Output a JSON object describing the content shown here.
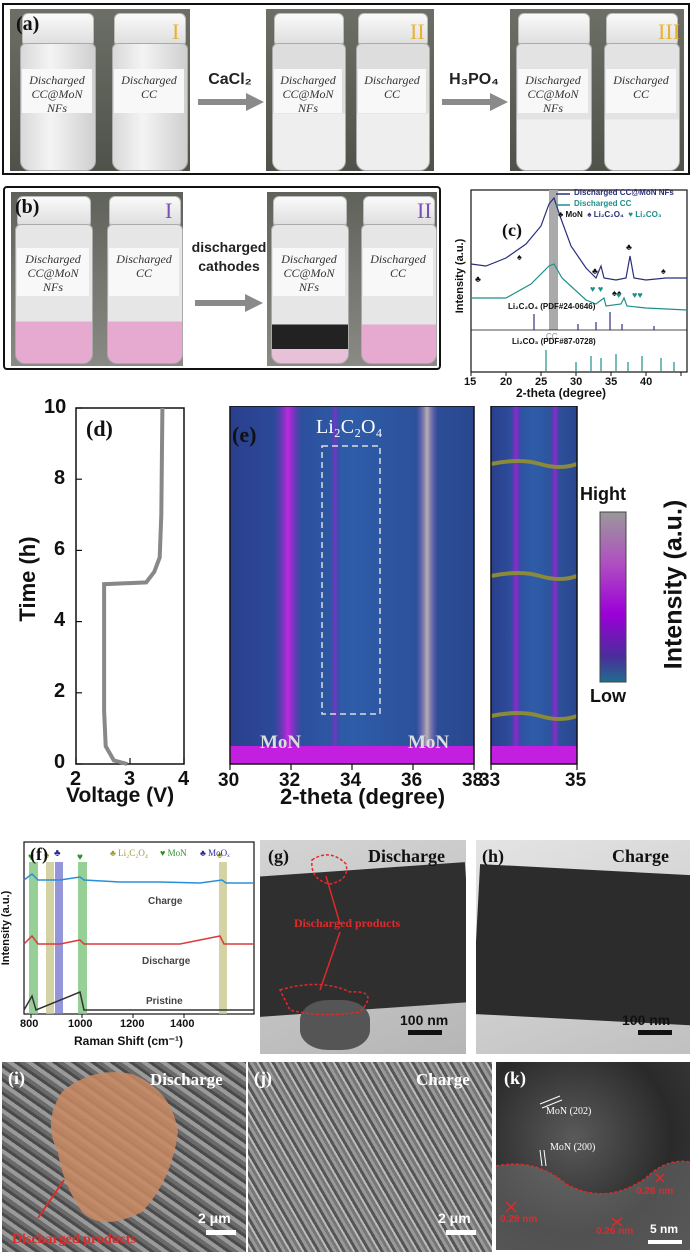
{
  "panel_a": {
    "label": "(a)",
    "vial_text_1": "Discharged CC@MoN NFs",
    "vial_text_2": "Discharged CC",
    "step1": "CaCl₂",
    "step2": "H₃PO₄",
    "roman": [
      "I",
      "II",
      "III"
    ]
  },
  "panel_b": {
    "label": "(b)",
    "step": "discharged cathodes",
    "roman": [
      "I",
      "II"
    ]
  },
  "panel_c": {
    "label": "(c)",
    "legend": [
      "Discharged CC@MoN NFs",
      "Discharged CC"
    ],
    "markers": [
      "♣ MoN",
      "♠ Li₂C₂O₄",
      "♥ Li₂CO₃"
    ],
    "cc_label": "CC",
    "ref1": "Li₂C₂O₄ (PDF#24-0646)",
    "ref2": "Li₂CO₃ (PDF#87-0728)",
    "ylabel": "Intensity (a.u.)",
    "xlabel": "2-theta (degree)",
    "xticks": [
      "15",
      "20",
      "25",
      "30",
      "35",
      "40"
    ]
  },
  "panel_d": {
    "label": "(d)",
    "ylabel": "Time (h)",
    "xlabel": "Voltage (V)",
    "yticks": [
      "0",
      "2",
      "4",
      "6",
      "8",
      "10"
    ],
    "xticks": [
      "2",
      "3",
      "4"
    ]
  },
  "panel_e": {
    "label": "(e)",
    "box_label": "Li₂C₂O₄",
    "mon1": "MoN",
    "mon2": "MoN",
    "xlabel": "2-theta (degree)",
    "xticks_main": [
      "30",
      "32",
      "34",
      "36",
      "38"
    ],
    "xticks_zoom": [
      "33",
      "35"
    ],
    "colorbar_high": "Hight",
    "colorbar_low": "Low",
    "colorbar_title": "Intensity (a.u.)"
  },
  "panel_f": {
    "label": "(f)",
    "legend": [
      "♣ Li₂C₂O₄",
      "♥ MoN",
      "♣ MoOₓ"
    ],
    "traces": [
      "Charge",
      "Discharge",
      "Pristine"
    ],
    "ylabel": "Intensity (a.u.)",
    "xlabel": "Raman Shift (cm⁻¹)",
    "xticks": [
      "800",
      "1000",
      "1200",
      "1400"
    ]
  },
  "panel_g": {
    "label": "(g)",
    "title": "Discharge",
    "annotation": "Discharged products",
    "scale": "100 nm"
  },
  "panel_h": {
    "label": "(h)",
    "title": "Charge",
    "scale": "100 nm"
  },
  "panel_i": {
    "label": "(i)",
    "title": "Discharge",
    "annotation": "Discharged products",
    "scale": "2 μm"
  },
  "panel_j": {
    "label": "(j)",
    "title": "Charge",
    "scale": "2 μm"
  },
  "panel_k": {
    "label": "(k)",
    "mon202": "MoN (202)",
    "mon200": "MoN (200)",
    "d1": "0.28 nm",
    "d2": "0.28 nm",
    "d3": "0.26 nm",
    "scale": "5 nm"
  },
  "chart_data": [
    {
      "type": "line",
      "panel": "d",
      "xlabel": "Voltage (V)",
      "ylabel": "Time (h)",
      "xlim": [
        2,
        4
      ],
      "ylim": [
        0,
        10
      ],
      "series": [
        {
          "x": [
            2.95,
            2.7,
            2.55,
            2.52,
            2.52,
            2.52,
            3.3,
            3.45,
            3.55,
            3.58,
            3.6
          ],
          "y": [
            0,
            0.1,
            0.5,
            1.5,
            3,
            5.05,
            5.1,
            5.4,
            5.8,
            7,
            10
          ]
        }
      ]
    }
  ]
}
